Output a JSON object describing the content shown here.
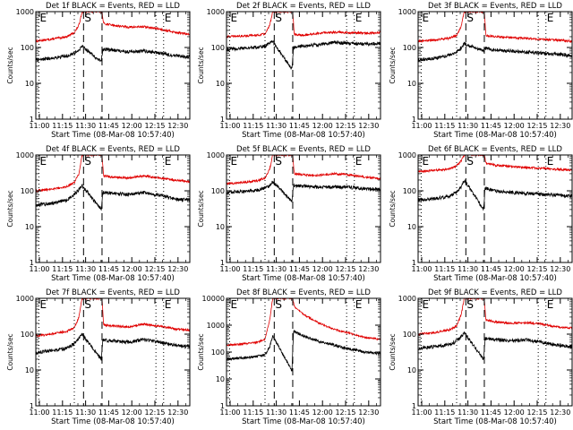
{
  "figure": {
    "xtick_labels": [
      "11:00",
      "11:15",
      "11:30",
      "11:45",
      "12:00",
      "12:15",
      "12:30"
    ],
    "xlabel": "Start Time (08-Mar-08 10:57:40)",
    "ylabel": "Counts/sec",
    "colors": {
      "events": "#000000",
      "lld": "#e00000",
      "axes": "#000000"
    }
  },
  "chart_data": [
    {
      "type": "line",
      "title": "Det 1f BLACK = Events, RED = LLD",
      "xlabel": "Start Time (08-Mar-08 10:57:40)",
      "ylabel": "Counts/sec",
      "x_unit": "minutes since 10:57:40",
      "xlim": [
        0,
        100
      ],
      "ylim": [
        1,
        1000
      ],
      "yscale": "log",
      "ytick_labels": [
        "1",
        "10",
        "100",
        "1000"
      ],
      "markers": [
        {
          "label": "E",
          "x": 2,
          "line": "dotted"
        },
        {
          "label": "",
          "x": 25,
          "line": "dotted"
        },
        {
          "label": "S",
          "x": 31,
          "line": "dashed"
        },
        {
          "label": "",
          "x": 43,
          "line": "dashed"
        },
        {
          "label": "",
          "x": 78,
          "line": "dotted"
        },
        {
          "label": "E",
          "x": 83,
          "line": "dotted"
        }
      ],
      "series": [
        {
          "key": "lld",
          "x": [
            0,
            10,
            20,
            25,
            28,
            30,
            43,
            44,
            50,
            60,
            70,
            80,
            90,
            100
          ],
          "y": [
            150,
            170,
            200,
            260,
            420,
            1000,
            1000,
            470,
            420,
            370,
            380,
            330,
            270,
            230
          ]
        },
        {
          "key": "events",
          "x": [
            0,
            10,
            20,
            25,
            28,
            30,
            42.5,
            43.5,
            50,
            60,
            70,
            80,
            90,
            100
          ],
          "y": [
            45,
            50,
            58,
            70,
            85,
            110,
            40,
            90,
            85,
            75,
            80,
            70,
            60,
            55
          ]
        }
      ]
    },
    {
      "type": "line",
      "title": "Det 2f BLACK = Events, RED = LLD",
      "xlabel": "Start Time (08-Mar-08 10:57:40)",
      "ylabel": "Counts/sec",
      "x_unit": "minutes since 10:57:40",
      "xlim": [
        0,
        100
      ],
      "ylim": [
        1,
        1000
      ],
      "yscale": "log",
      "ytick_labels": [
        "1",
        "10",
        "100",
        "1000"
      ],
      "markers": [
        {
          "label": "E",
          "x": 2,
          "line": "dotted"
        },
        {
          "label": "",
          "x": 25,
          "line": "dotted"
        },
        {
          "label": "S",
          "x": 31,
          "line": "dashed"
        },
        {
          "label": "",
          "x": 43,
          "line": "dashed"
        },
        {
          "label": "",
          "x": 78,
          "line": "dotted"
        },
        {
          "label": "E",
          "x": 83,
          "line": "dotted"
        }
      ],
      "series": [
        {
          "key": "lld",
          "x": [
            0,
            10,
            20,
            25,
            28,
            30,
            43,
            44,
            50,
            60,
            70,
            80,
            90,
            100
          ],
          "y": [
            200,
            210,
            220,
            240,
            400,
            1000,
            1000,
            230,
            220,
            250,
            270,
            260,
            250,
            260
          ]
        },
        {
          "key": "events",
          "x": [
            0,
            10,
            20,
            25,
            28,
            30,
            42.5,
            43.5,
            50,
            60,
            70,
            80,
            90,
            100
          ],
          "y": [
            90,
            95,
            100,
            110,
            130,
            150,
            25,
            100,
            110,
            120,
            140,
            130,
            125,
            130
          ]
        }
      ]
    },
    {
      "type": "line",
      "title": "Det 3f BLACK = Events, RED = LLD",
      "xlabel": "Start Time (08-Mar-08 10:57:40)",
      "ylabel": "Counts/sec",
      "x_unit": "minutes since 10:57:40",
      "xlim": [
        0,
        100
      ],
      "ylim": [
        1,
        1000
      ],
      "yscale": "log",
      "ytick_labels": [
        "1",
        "10",
        "100",
        "1000"
      ],
      "markers": [
        {
          "label": "E",
          "x": 2,
          "line": "dotted"
        },
        {
          "label": "",
          "x": 25,
          "line": "dotted"
        },
        {
          "label": "S",
          "x": 31,
          "line": "dashed"
        },
        {
          "label": "",
          "x": 43,
          "line": "dashed"
        },
        {
          "label": "",
          "x": 78,
          "line": "dotted"
        },
        {
          "label": "E",
          "x": 83,
          "line": "dotted"
        }
      ],
      "series": [
        {
          "key": "lld",
          "x": [
            0,
            10,
            20,
            25,
            28,
            30,
            43,
            44,
            50,
            60,
            70,
            80,
            90,
            100
          ],
          "y": [
            150,
            160,
            180,
            220,
            400,
            1000,
            1000,
            220,
            200,
            190,
            180,
            170,
            160,
            150
          ]
        },
        {
          "key": "events",
          "x": [
            0,
            10,
            20,
            25,
            28,
            30,
            42.5,
            43.5,
            50,
            60,
            70,
            80,
            90,
            100
          ],
          "y": [
            45,
            50,
            60,
            75,
            100,
            130,
            80,
            95,
            85,
            80,
            75,
            70,
            65,
            60
          ]
        }
      ]
    },
    {
      "type": "line",
      "title": "Det 4f BLACK = Events, RED = LLD",
      "xlabel": "Start Time (08-Mar-08 10:57:40)",
      "ylabel": "Counts/sec",
      "x_unit": "minutes since 10:57:40",
      "xlim": [
        0,
        100
      ],
      "ylim": [
        1,
        1000
      ],
      "yscale": "log",
      "ytick_labels": [
        "1",
        "10",
        "100",
        "1000"
      ],
      "markers": [
        {
          "label": "E",
          "x": 2,
          "line": "dotted"
        },
        {
          "label": "",
          "x": 25,
          "line": "dotted"
        },
        {
          "label": "S",
          "x": 31,
          "line": "dashed"
        },
        {
          "label": "",
          "x": 43,
          "line": "dashed"
        },
        {
          "label": "",
          "x": 78,
          "line": "dotted"
        },
        {
          "label": "E",
          "x": 83,
          "line": "dotted"
        }
      ],
      "series": [
        {
          "key": "lld",
          "x": [
            0,
            10,
            20,
            25,
            28,
            30,
            43,
            44,
            50,
            60,
            70,
            80,
            90,
            100
          ],
          "y": [
            100,
            110,
            130,
            170,
            300,
            1000,
            1000,
            260,
            240,
            230,
            260,
            230,
            200,
            180
          ]
        },
        {
          "key": "events",
          "x": [
            0,
            10,
            20,
            25,
            28,
            30,
            42.5,
            43.5,
            50,
            60,
            70,
            80,
            90,
            100
          ],
          "y": [
            40,
            45,
            55,
            80,
            110,
            140,
            30,
            90,
            85,
            80,
            90,
            75,
            60,
            55
          ]
        }
      ]
    },
    {
      "type": "line",
      "title": "Det 5f BLACK = Events, RED = LLD",
      "xlabel": "Start Time (08-Mar-08 10:57:40)",
      "ylabel": "Counts/sec",
      "x_unit": "minutes since 10:57:40",
      "xlim": [
        0,
        100
      ],
      "ylim": [
        1,
        1000
      ],
      "yscale": "log",
      "ytick_labels": [
        "1",
        "10",
        "100",
        "1000"
      ],
      "markers": [
        {
          "label": "E",
          "x": 2,
          "line": "dotted"
        },
        {
          "label": "",
          "x": 25,
          "line": "dotted"
        },
        {
          "label": "S",
          "x": 31,
          "line": "dashed"
        },
        {
          "label": "",
          "x": 43,
          "line": "dashed"
        },
        {
          "label": "",
          "x": 78,
          "line": "dotted"
        },
        {
          "label": "E",
          "x": 83,
          "line": "dotted"
        }
      ],
      "series": [
        {
          "key": "lld",
          "x": [
            0,
            10,
            20,
            25,
            28,
            30,
            43,
            44,
            50,
            60,
            70,
            80,
            90,
            100
          ],
          "y": [
            160,
            170,
            190,
            230,
            400,
            1000,
            1000,
            300,
            280,
            270,
            300,
            280,
            240,
            220
          ]
        },
        {
          "key": "events",
          "x": [
            0,
            10,
            20,
            25,
            28,
            30,
            42.5,
            43.5,
            50,
            60,
            70,
            80,
            90,
            100
          ],
          "y": [
            90,
            95,
            105,
            120,
            140,
            180,
            50,
            140,
            135,
            125,
            130,
            125,
            115,
            110
          ]
        }
      ]
    },
    {
      "type": "line",
      "title": "Det 6f BLACK = Events, RED = LLD",
      "xlabel": "Start Time (08-Mar-08 10:57:40)",
      "ylabel": "Counts/sec",
      "x_unit": "minutes since 10:57:40",
      "xlim": [
        0,
        100
      ],
      "ylim": [
        1,
        1000
      ],
      "yscale": "log",
      "ytick_labels": [
        "1",
        "10",
        "100",
        "1000"
      ],
      "markers": [
        {
          "label": "E",
          "x": 2,
          "line": "dotted"
        },
        {
          "label": "",
          "x": 25,
          "line": "dotted"
        },
        {
          "label": "S",
          "x": 31,
          "line": "dashed"
        },
        {
          "label": "",
          "x": 43,
          "line": "dashed"
        },
        {
          "label": "",
          "x": 78,
          "line": "dotted"
        },
        {
          "label": "E",
          "x": 83,
          "line": "dotted"
        }
      ],
      "series": [
        {
          "key": "lld",
          "x": [
            0,
            10,
            20,
            25,
            28,
            30,
            43,
            44,
            50,
            60,
            70,
            80,
            90,
            100
          ],
          "y": [
            350,
            370,
            400,
            500,
            700,
            1000,
            1000,
            600,
            520,
            480,
            450,
            430,
            400,
            380
          ]
        },
        {
          "key": "events",
          "x": [
            0,
            10,
            20,
            25,
            28,
            30,
            42.5,
            43.5,
            50,
            60,
            70,
            80,
            90,
            100
          ],
          "y": [
            55,
            60,
            70,
            90,
            130,
            200,
            30,
            120,
            100,
            90,
            85,
            80,
            75,
            70
          ]
        }
      ]
    },
    {
      "type": "line",
      "title": "Det 7f BLACK = Events, RED = LLD",
      "xlabel": "Start Time (08-Mar-08 10:57:40)",
      "ylabel": "Counts/sec",
      "x_unit": "minutes since 10:57:40",
      "xlim": [
        0,
        100
      ],
      "ylim": [
        1,
        1000
      ],
      "yscale": "log",
      "ytick_labels": [
        "1",
        "10",
        "100",
        "1000"
      ],
      "markers": [
        {
          "label": "E",
          "x": 2,
          "line": "dotted"
        },
        {
          "label": "",
          "x": 25,
          "line": "dotted"
        },
        {
          "label": "S",
          "x": 31,
          "line": "dashed"
        },
        {
          "label": "",
          "x": 43,
          "line": "dashed"
        },
        {
          "label": "",
          "x": 78,
          "line": "dotted"
        },
        {
          "label": "E",
          "x": 83,
          "line": "dotted"
        }
      ],
      "series": [
        {
          "key": "lld",
          "x": [
            0,
            10,
            20,
            25,
            28,
            30,
            43,
            44,
            50,
            60,
            70,
            80,
            90,
            100
          ],
          "y": [
            90,
            100,
            120,
            150,
            300,
            1000,
            1000,
            180,
            170,
            160,
            190,
            170,
            140,
            130
          ]
        },
        {
          "key": "events",
          "x": [
            0,
            10,
            20,
            25,
            28,
            30,
            42.5,
            43.5,
            50,
            60,
            70,
            80,
            90,
            100
          ],
          "y": [
            30,
            35,
            40,
            55,
            75,
            100,
            20,
            70,
            65,
            60,
            70,
            60,
            50,
            45
          ]
        }
      ]
    },
    {
      "type": "line",
      "title": "Det 8f BLACK = Events, RED = LLD",
      "xlabel": "Start Time (08-Mar-08 10:57:40)",
      "ylabel": "Counts/sec",
      "x_unit": "minutes since 10:57:40",
      "xlim": [
        0,
        100
      ],
      "ylim": [
        1,
        10000
      ],
      "yscale": "log",
      "ytick_labels": [
        "1",
        "10",
        "100",
        "1000",
        "10000"
      ],
      "markers": [
        {
          "label": "E",
          "x": 2,
          "line": "dotted"
        },
        {
          "label": "",
          "x": 25,
          "line": "dotted"
        },
        {
          "label": "S",
          "x": 31,
          "line": "dashed"
        },
        {
          "label": "",
          "x": 43,
          "line": "dashed"
        },
        {
          "label": "",
          "x": 78,
          "line": "dotted"
        },
        {
          "label": "E",
          "x": 83,
          "line": "dotted"
        }
      ],
      "series": [
        {
          "key": "lld",
          "x": [
            0,
            10,
            20,
            25,
            28,
            30,
            43,
            44,
            50,
            60,
            70,
            80,
            90,
            100
          ],
          "y": [
            180,
            200,
            230,
            300,
            1500,
            10000,
            10000,
            5000,
            2500,
            1200,
            700,
            500,
            350,
            300
          ]
        },
        {
          "key": "events",
          "x": [
            0,
            10,
            20,
            25,
            28,
            30,
            42.5,
            43.5,
            50,
            60,
            70,
            80,
            90,
            100
          ],
          "y": [
            55,
            60,
            70,
            80,
            150,
            400,
            20,
            600,
            400,
            250,
            180,
            130,
            100,
            90
          ]
        }
      ]
    },
    {
      "type": "line",
      "title": "Det 9f BLACK = Events, RED = LLD",
      "xlabel": "Start Time (08-Mar-08 10:57:40)",
      "ylabel": "Counts/sec",
      "x_unit": "minutes since 10:57:40",
      "xlim": [
        0,
        100
      ],
      "ylim": [
        1,
        1000
      ],
      "yscale": "log",
      "ytick_labels": [
        "1",
        "10",
        "100",
        "1000"
      ],
      "markers": [
        {
          "label": "E",
          "x": 2,
          "line": "dotted"
        },
        {
          "label": "",
          "x": 25,
          "line": "dotted"
        },
        {
          "label": "S",
          "x": 31,
          "line": "dashed"
        },
        {
          "label": "",
          "x": 43,
          "line": "dashed"
        },
        {
          "label": "",
          "x": 78,
          "line": "dotted"
        },
        {
          "label": "E",
          "x": 83,
          "line": "dotted"
        }
      ],
      "series": [
        {
          "key": "lld",
          "x": [
            0,
            10,
            20,
            25,
            28,
            30,
            43,
            44,
            50,
            60,
            70,
            80,
            90,
            100
          ],
          "y": [
            100,
            110,
            130,
            170,
            350,
            1000,
            1000,
            250,
            220,
            200,
            210,
            190,
            160,
            150
          ]
        },
        {
          "key": "events",
          "x": [
            0,
            10,
            20,
            25,
            28,
            30,
            42.5,
            43.5,
            50,
            60,
            70,
            80,
            90,
            100
          ],
          "y": [
            40,
            45,
            50,
            65,
            85,
            110,
            20,
            75,
            70,
            65,
            70,
            60,
            50,
            45
          ]
        }
      ]
    }
  ]
}
